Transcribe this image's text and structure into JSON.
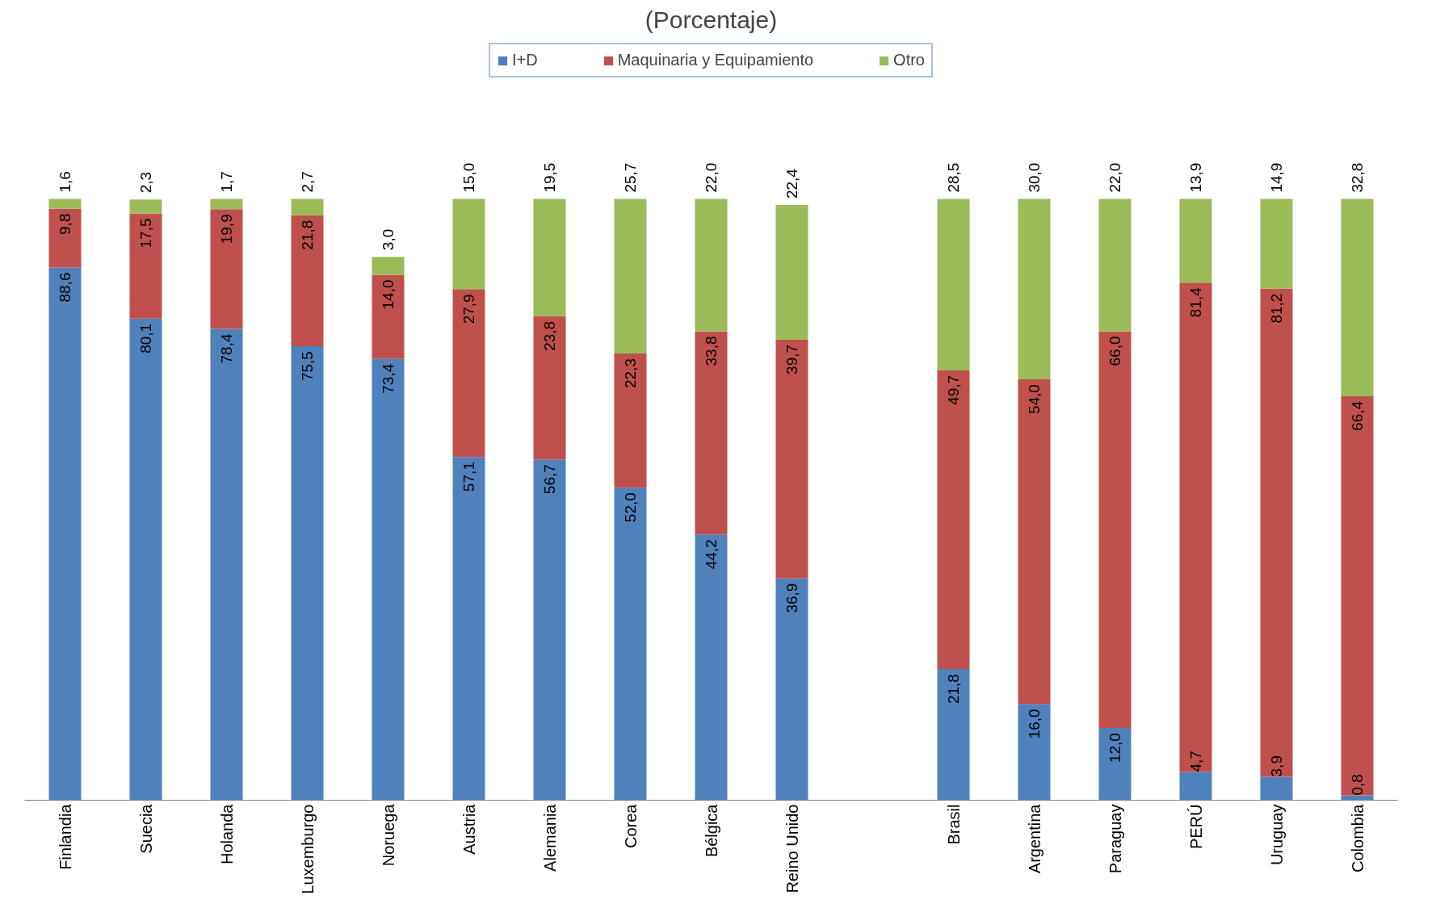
{
  "chart_data": {
    "type": "bar",
    "title": "(Porcentaje)",
    "stacked": true,
    "legend": "top",
    "grid": false,
    "tick_labels": "x",
    "categories": [
      "Finlandia",
      "Suecia",
      "Holanda",
      "Luxemburgo",
      "Noruega",
      "Austria",
      "Alemania",
      "Corea",
      "Bélgica",
      "Reino Unido",
      null,
      "Brasil",
      "Argentina",
      "Paraguay",
      "PERÚ",
      "Uruguay",
      "Colombia"
    ],
    "series": [
      {
        "name": "I+D",
        "color": "#4f81bd",
        "values": [
          88.6,
          80.1,
          78.4,
          75.5,
          73.4,
          57.1,
          56.7,
          52.0,
          44.2,
          36.9,
          null,
          21.8,
          16.0,
          12.0,
          4.7,
          3.9,
          0.8
        ],
        "value_labels": [
          "88,6",
          "80,1",
          "78,4",
          "75,5",
          "73,4",
          "57,1",
          "56,7",
          "52,0",
          "44,2",
          "36,9",
          null,
          "21,8",
          "16,0",
          "12,0",
          "4,7",
          "3,9",
          "0,8"
        ]
      },
      {
        "name": "Maquinaria y Equipamiento",
        "color": "#c0504d",
        "values": [
          9.8,
          17.5,
          19.9,
          21.8,
          14.0,
          27.9,
          23.8,
          22.3,
          33.8,
          39.7,
          null,
          49.7,
          54.0,
          66.0,
          81.4,
          81.2,
          66.4
        ],
        "value_labels": [
          "9,8",
          "17,5",
          "19,9",
          "21,8",
          "14,0",
          "27,9",
          "23,8",
          "22,3",
          "33,8",
          "39,7",
          null,
          "49,7",
          "54,0",
          "66,0",
          "81,4",
          "81,2",
          "66,4"
        ]
      },
      {
        "name": "Otro",
        "color": "#9bbb59",
        "values": [
          1.6,
          2.3,
          1.7,
          2.7,
          3.0,
          15.0,
          19.5,
          25.7,
          22.0,
          22.4,
          null,
          28.5,
          30.0,
          22.0,
          13.9,
          14.9,
          32.8
        ],
        "value_labels": [
          "1,6",
          "2,3",
          "1,7",
          "2,7",
          "3,0",
          "15,0",
          "19,5",
          "25,7",
          "22,0",
          "22,4",
          null,
          "28,5",
          "30,0",
          "22,0",
          "13,9",
          "14,9",
          "32,8"
        ]
      }
    ]
  }
}
